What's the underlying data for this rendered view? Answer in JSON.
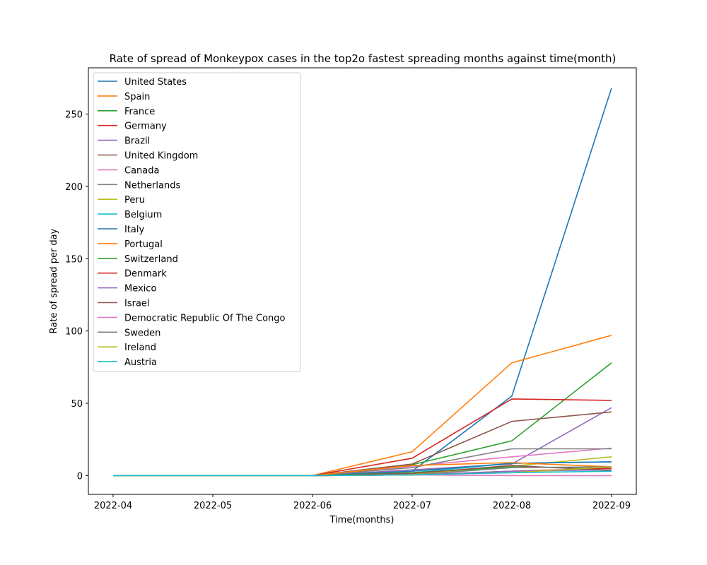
{
  "chart_data": {
    "type": "line",
    "title": "Rate of spread of Monkeypox cases in the top2o fastest spreading      months against time(month)",
    "xlabel": "Time(months)",
    "ylabel": "Rate of spread per day",
    "x": [
      "2022-04",
      "2022-05",
      "2022-06",
      "2022-07",
      "2022-08",
      "2022-09"
    ],
    "x_ticks": [
      "2022-04",
      "2022-05",
      "2022-06",
      "2022-07",
      "2022-08",
      "2022-09"
    ],
    "y_ticks": [
      0,
      50,
      100,
      150,
      200,
      250
    ],
    "xlim": [
      "2022-04",
      "2022-09"
    ],
    "ylim": [
      -13,
      282
    ],
    "grid": false,
    "legend_position": "upper-left",
    "series": [
      {
        "name": "United States",
        "color": "#1f77b4",
        "values": [
          0,
          0,
          0,
          3,
          55,
          268
        ]
      },
      {
        "name": "Spain",
        "color": "#ff7f0e",
        "values": [
          0,
          0,
          0,
          16.5,
          78,
          97
        ]
      },
      {
        "name": "France",
        "color": "#2ca02c",
        "values": [
          0,
          0,
          0,
          7.5,
          24,
          78
        ]
      },
      {
        "name": "Germany",
        "color": "#d62728",
        "values": [
          0,
          0,
          0,
          12,
          53,
          52
        ]
      },
      {
        "name": "Brazil",
        "color": "#9467bd",
        "values": [
          0,
          0,
          0,
          4,
          8,
          47
        ]
      },
      {
        "name": "United Kingdom",
        "color": "#8c564b",
        "values": [
          0,
          0,
          0,
          8,
          37.5,
          44
        ]
      },
      {
        "name": "Canada",
        "color": "#e377c2",
        "values": [
          0,
          0,
          0,
          6.5,
          13,
          19
        ]
      },
      {
        "name": "Netherlands",
        "color": "#7f7f7f",
        "values": [
          0,
          0,
          0,
          5.5,
          18.5,
          18.5
        ]
      },
      {
        "name": "Peru",
        "color": "#bcbd22",
        "values": [
          0,
          0,
          0,
          1,
          6.5,
          13
        ]
      },
      {
        "name": "Belgium",
        "color": "#17becf",
        "values": [
          0,
          0,
          0,
          2,
          8.5,
          9.5
        ]
      },
      {
        "name": "Italy",
        "color": "#1f77b4",
        "values": [
          0,
          0,
          0,
          3,
          8.5,
          9.5
        ]
      },
      {
        "name": "Portugal",
        "color": "#ff7f0e",
        "values": [
          0,
          0,
          0,
          7,
          9,
          6
        ]
      },
      {
        "name": "Switzerland",
        "color": "#2ca02c",
        "values": [
          0,
          0,
          0,
          2,
          6,
          5
        ]
      },
      {
        "name": "Denmark",
        "color": "#d62728",
        "values": [
          0,
          0,
          0,
          0.5,
          3,
          5
        ]
      },
      {
        "name": "Mexico",
        "color": "#9467bd",
        "values": [
          0,
          0,
          0,
          0.5,
          3,
          4
        ]
      },
      {
        "name": "Israel",
        "color": "#8c564b",
        "values": [
          0,
          0,
          0,
          1.5,
          7,
          3.5
        ]
      },
      {
        "name": "Democratic Republic Of The Congo",
        "color": "#e377c2",
        "values": [
          0,
          0,
          0,
          0.5,
          0,
          0
        ]
      },
      {
        "name": "Sweden",
        "color": "#7f7f7f",
        "values": [
          0,
          0,
          0,
          0.5,
          5.5,
          6
        ]
      },
      {
        "name": "Ireland",
        "color": "#bcbd22",
        "values": [
          0,
          0,
          0,
          0.5,
          2,
          6
        ]
      },
      {
        "name": "Austria",
        "color": "#17becf",
        "values": [
          0,
          0,
          0,
          0.5,
          2,
          3
        ]
      }
    ]
  }
}
